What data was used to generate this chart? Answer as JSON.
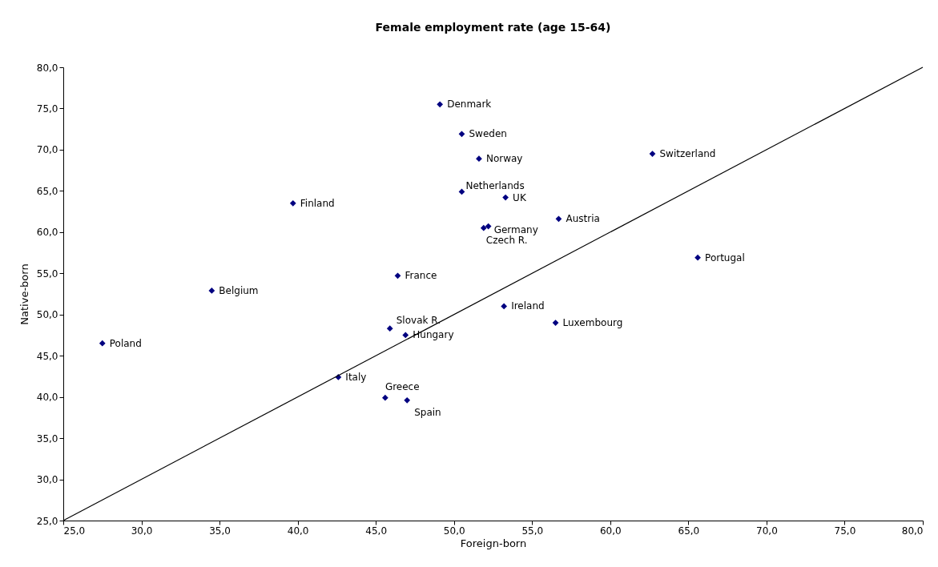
{
  "chart_data": {
    "type": "scatter",
    "title": "Female employment rate (age 15-64)",
    "xlabel": "Foreign-born",
    "ylabel": "Native-born",
    "grid": false,
    "xlim": [
      25,
      80
    ],
    "ylim": [
      25,
      80
    ],
    "xticks": [
      {
        "value": 25,
        "label": "25,0"
      },
      {
        "value": 30,
        "label": "30,0"
      },
      {
        "value": 35,
        "label": "35,0"
      },
      {
        "value": 40,
        "label": "40,0"
      },
      {
        "value": 45,
        "label": "45,0"
      },
      {
        "value": 50,
        "label": "50,0"
      },
      {
        "value": 55,
        "label": "55,0"
      },
      {
        "value": 60,
        "label": "60,0"
      },
      {
        "value": 65,
        "label": "65,0"
      },
      {
        "value": 70,
        "label": "70,0"
      },
      {
        "value": 75,
        "label": "75,0"
      },
      {
        "value": 80,
        "label": "80,0"
      }
    ],
    "yticks": [
      {
        "value": 25,
        "label": "25,0"
      },
      {
        "value": 30,
        "label": "30,0"
      },
      {
        "value": 35,
        "label": "35,0"
      },
      {
        "value": 40,
        "label": "40,0"
      },
      {
        "value": 45,
        "label": "45,0"
      },
      {
        "value": 50,
        "label": "50,0"
      },
      {
        "value": 55,
        "label": "55,0"
      },
      {
        "value": 60,
        "label": "60,0"
      },
      {
        "value": 65,
        "label": "65,0"
      },
      {
        "value": 70,
        "label": "70,0"
      },
      {
        "value": 75,
        "label": "75,0"
      },
      {
        "value": 80,
        "label": "80,0"
      }
    ],
    "series": [
      {
        "color": "#000080",
        "marker": "diamond",
        "x": [
          49.1,
          50.5,
          51.6,
          62.7,
          50.5,
          53.3,
          39.7,
          56.7,
          52.2,
          51.9,
          65.6,
          46.4,
          34.5,
          53.2,
          56.5,
          45.9,
          46.9,
          27.5,
          42.6,
          45.6,
          47.0
        ],
        "values": [
          75.5,
          71.9,
          68.9,
          69.5,
          64.9,
          64.2,
          63.5,
          61.6,
          60.7,
          60.5,
          56.9,
          54.7,
          52.9,
          51.0,
          49.0,
          48.3,
          47.5,
          46.5,
          42.4,
          39.9,
          39.6
        ]
      },
      {
        "type": "line",
        "marker": "none",
        "color": "#000000",
        "x": [
          25,
          80
        ],
        "values": [
          25,
          80
        ]
      }
    ],
    "annotations": [
      {
        "text": "Denmark",
        "x": 49.1,
        "y": 75.5
      },
      {
        "text": "Sweden",
        "x": 50.5,
        "y": 71.9
      },
      {
        "text": "Norway",
        "x": 51.6,
        "y": 68.9
      },
      {
        "text": "Switzerland",
        "x": 62.7,
        "y": 69.5
      },
      {
        "text": "Netherlands",
        "x": 50.5,
        "y": 64.9
      },
      {
        "text": "UK",
        "x": 53.3,
        "y": 64.2
      },
      {
        "text": "Finland",
        "x": 39.7,
        "y": 63.5
      },
      {
        "text": "Austria",
        "x": 56.7,
        "y": 61.6
      },
      {
        "text": "Germany",
        "x": 52.2,
        "y": 60.7
      },
      {
        "text": "Czech R.",
        "x": 51.9,
        "y": 60.5
      },
      {
        "text": "Portugal",
        "x": 65.6,
        "y": 56.9
      },
      {
        "text": "France",
        "x": 46.4,
        "y": 54.7
      },
      {
        "text": "Belgium",
        "x": 34.5,
        "y": 52.9
      },
      {
        "text": "Ireland",
        "x": 53.2,
        "y": 51.0
      },
      {
        "text": "Luxembourg",
        "x": 56.5,
        "y": 49.0
      },
      {
        "text": "Slovak R.",
        "x": 45.9,
        "y": 48.3
      },
      {
        "text": "Hungary",
        "x": 46.9,
        "y": 47.5
      },
      {
        "text": "Poland",
        "x": 27.5,
        "y": 46.5
      },
      {
        "text": "Italy",
        "x": 42.6,
        "y": 42.4
      },
      {
        "text": "Greece",
        "x": 45.6,
        "y": 39.9
      },
      {
        "text": "Spain",
        "x": 47.0,
        "y": 39.6
      }
    ]
  }
}
